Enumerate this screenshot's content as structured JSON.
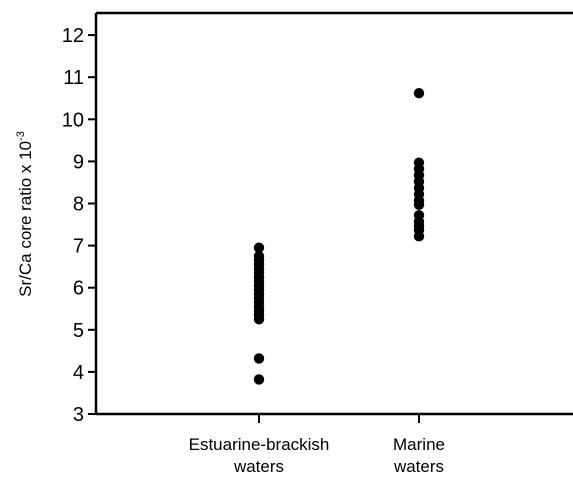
{
  "chart_data": {
    "type": "scatter",
    "title": "",
    "xlabel": "",
    "ylabel_text": "Sr/Ca core ratio x 10",
    "ylabel_exponent": "-3",
    "ylim": [
      3,
      12.5
    ],
    "yticks": [
      3,
      4,
      5,
      6,
      7,
      8,
      9,
      10,
      11,
      12
    ],
    "ytick_labels": [
      "3",
      "4",
      "5",
      "6",
      "7",
      "8",
      "9",
      "10",
      "11",
      "12"
    ],
    "grid": false,
    "legend": "none",
    "categories": [
      {
        "line1": "Estuarine-brackish",
        "line2": "waters"
      },
      {
        "line1": "Marine",
        "line2": "waters"
      }
    ],
    "series": [
      {
        "category_index": 0,
        "values": [
          6.95,
          6.75,
          6.65,
          6.55,
          6.45,
          6.35,
          6.25,
          6.15,
          6.05,
          5.95,
          5.85,
          5.75,
          5.65,
          5.55,
          5.45,
          5.35,
          5.25,
          4.32,
          3.82
        ]
      },
      {
        "category_index": 1,
        "values": [
          10.62,
          8.97,
          8.82,
          8.67,
          8.52,
          8.37,
          8.22,
          8.07,
          7.97,
          7.72,
          7.57,
          7.47,
          7.37,
          7.22
        ]
      }
    ],
    "colors": {
      "points": "#000000",
      "axis": "#000000",
      "background": "#ffffff"
    }
  }
}
